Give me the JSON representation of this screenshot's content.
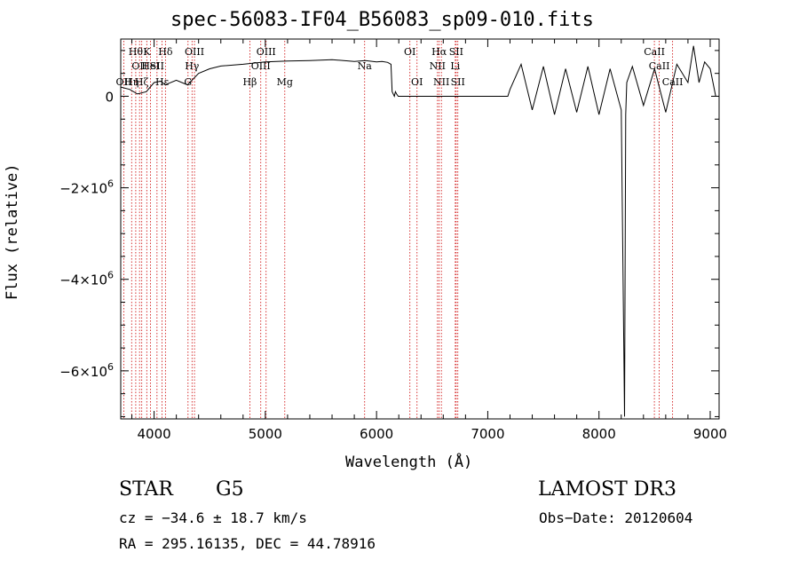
{
  "chart_data": {
    "type": "line",
    "title": "spec-56083-IF04_B56083_sp09-010.fits",
    "xlabel": "Wavelength (Å)",
    "ylabel": "Flux (relative)",
    "xlim": [
      3700,
      9080
    ],
    "ylim": [
      -7050000,
      1250000
    ],
    "x_ticks": [
      4000,
      5000,
      6000,
      7000,
      8000,
      9000
    ],
    "x_tick_labels": [
      "4000",
      "5000",
      "6000",
      "7000",
      "8000",
      "9000"
    ],
    "y_ticks": [
      0,
      -2000000,
      -4000000,
      -6000000
    ],
    "y_tick_labels": [
      {
        "base": "0",
        "exp": ""
      },
      {
        "base": "−2×10",
        "exp": "6"
      },
      {
        "base": "−4×10",
        "exp": "6"
      },
      {
        "base": "−6×10",
        "exp": "6"
      }
    ],
    "series": [
      {
        "name": "spectrum",
        "x": [
          3700,
          3780,
          3850,
          3930,
          4000,
          4060,
          4100,
          4200,
          4300,
          4400,
          4500,
          4600,
          4800,
          5000,
          5200,
          5400,
          5600,
          5800,
          5900,
          6000,
          6050,
          6100,
          6130,
          6140,
          6160,
          6170,
          6180,
          6195,
          6300,
          6500,
          6700,
          6900,
          7100,
          7180,
          7200,
          7300,
          7400,
          7500,
          7600,
          7700,
          7800,
          7900,
          8000,
          8100,
          8200,
          8230,
          8240,
          8250,
          8300,
          8400,
          8500,
          8600,
          8700,
          8800,
          8850,
          8900,
          8950,
          9000,
          9050
        ],
        "y": [
          200000,
          150000,
          50000,
          100000,
          300000,
          330000,
          250000,
          350000,
          250000,
          500000,
          600000,
          660000,
          700000,
          750000,
          770000,
          780000,
          800000,
          760000,
          780000,
          750000,
          760000,
          740000,
          700000,
          100000,
          0,
          100000,
          50000,
          0,
          0,
          0,
          0,
          0,
          0,
          0,
          150000,
          700000,
          -300000,
          650000,
          -400000,
          600000,
          -350000,
          650000,
          -400000,
          600000,
          -300000,
          -7000000,
          -400000,
          300000,
          650000,
          -200000,
          600000,
          -350000,
          700000,
          300000,
          1100000,
          300000,
          750000,
          600000,
          0
        ]
      }
    ],
    "lines": [
      {
        "wave": 3727,
        "label": "OII",
        "row": 3
      },
      {
        "wave": 3798,
        "label": "Hη",
        "row": 3
      },
      {
        "wave": 3835,
        "label": "Hθ",
        "row": 1
      },
      {
        "wave": 3869,
        "label": "OII",
        "row": 2
      },
      {
        "wave": 3889,
        "label": "Hζ",
        "row": 3
      },
      {
        "wave": 3934,
        "label": "K",
        "row": 1
      },
      {
        "wave": 3968,
        "label": "HeI",
        "row": 2
      },
      {
        "wave": 4026,
        "label": "SII",
        "row": 2
      },
      {
        "wave": 4072,
        "label": "Hε",
        "row": 3
      },
      {
        "wave": 4102,
        "label": "Hδ",
        "row": 1
      },
      {
        "wave": 4305,
        "label": "G",
        "row": 3
      },
      {
        "wave": 4341,
        "label": "Hγ",
        "row": 2
      },
      {
        "wave": 4363,
        "label": "OIII",
        "row": 1
      },
      {
        "wave": 4861,
        "label": "Hβ",
        "row": 3
      },
      {
        "wave": 4959,
        "label": "OIII",
        "row": 2
      },
      {
        "wave": 5007,
        "label": "OIII",
        "row": 1
      },
      {
        "wave": 5175,
        "label": "Mg",
        "row": 3
      },
      {
        "wave": 5893,
        "label": "Na",
        "row": 2
      },
      {
        "wave": 6300,
        "label": "OI",
        "row": 1
      },
      {
        "wave": 6364,
        "label": "OI",
        "row": 3
      },
      {
        "wave": 6548,
        "label": "NII",
        "row": 2
      },
      {
        "wave": 6563,
        "label": "Hα",
        "row": 1
      },
      {
        "wave": 6583,
        "label": "NII",
        "row": 3
      },
      {
        "wave": 6708,
        "label": "Li",
        "row": 2
      },
      {
        "wave": 6716,
        "label": "SII",
        "row": 1
      },
      {
        "wave": 6731,
        "label": "SII",
        "row": 3
      },
      {
        "wave": 8498,
        "label": "CaII",
        "row": 1
      },
      {
        "wave": 8542,
        "label": "CaII",
        "row": 2
      },
      {
        "wave": 8662,
        "label": "CaII",
        "row": 3
      }
    ],
    "line_color": "#cc0000"
  },
  "info": {
    "class": "STAR",
    "subclass": "G5",
    "survey": "LAMOST DR3",
    "cz": "cz = −34.6 ± 18.7 km/s",
    "obs_date": "Obs−Date: 20120604",
    "coords": "RA = 295.16135, DEC =  44.78916"
  }
}
